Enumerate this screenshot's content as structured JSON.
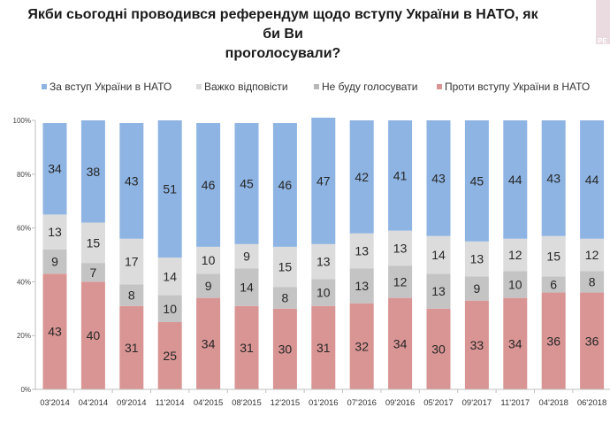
{
  "chart_data": {
    "type": "bar",
    "stacked": true,
    "title": "Якби сьогодні проводився референдум щодо вступу України в НАТО, як би Ви проголосували?",
    "title_lines": [
      "Якби сьогодні проводився референдум щодо вступу України в НАТО, як би Ви",
      "проголосували?"
    ],
    "xlabel": "",
    "ylabel": "",
    "ylim": [
      0,
      100
    ],
    "yticks": [
      "0%",
      "20%",
      "40%",
      "60%",
      "80%",
      "100%"
    ],
    "legend_position": "top",
    "categories": [
      "03'2014",
      "04'2014",
      "09'2014",
      "11'2014",
      "04'2015",
      "08'2015",
      "12'2015",
      "01'2016",
      "07'2016",
      "09'2016",
      "05'2017",
      "09'2017",
      "11'2017",
      "04'2018",
      "06'2018"
    ],
    "series": [
      {
        "name": "Проти вступу України в НАТО",
        "color": "#d99594",
        "values": [
          43,
          40,
          31,
          25,
          34,
          31,
          30,
          31,
          32,
          34,
          30,
          33,
          34,
          36,
          36
        ]
      },
      {
        "name": "Не буду голосувати",
        "color": "#c4c4c4",
        "values": [
          9,
          7,
          8,
          10,
          9,
          14,
          8,
          10,
          13,
          12,
          13,
          9,
          10,
          6,
          8
        ]
      },
      {
        "name": "Важко відповісти",
        "color": "#dcdcdc",
        "values": [
          13,
          15,
          17,
          14,
          10,
          9,
          15,
          13,
          13,
          13,
          14,
          13,
          12,
          15,
          12
        ]
      },
      {
        "name": "За вступ України в НАТО",
        "color": "#8eb4e3",
        "values": [
          34,
          38,
          43,
          51,
          46,
          45,
          46,
          47,
          42,
          41,
          43,
          45,
          44,
          43,
          44
        ]
      }
    ],
    "legend_order": [
      "За вступ України в НАТО",
      "Важко відповісти",
      "Не буду голосувати",
      "Проти вступу України в НАТО"
    ]
  },
  "logo_text": "РЕ"
}
